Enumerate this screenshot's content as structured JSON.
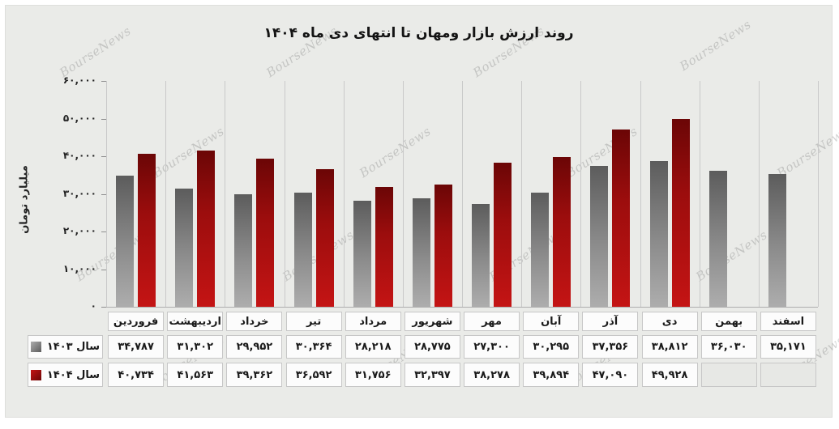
{
  "watermark": {
    "text": "BourseNews"
  },
  "title": "روند ارزش بازار ومهان تا انتهای دی ماه ۱۴۰۴",
  "y_axis": {
    "title": "میلیارد تومان",
    "tick_labels_fa": [
      "۰",
      "۱۰,۰۰۰",
      "۲۰,۰۰۰",
      "۳۰,۰۰۰",
      "۴۰,۰۰۰",
      "۵۰,۰۰۰",
      "۶۰,۰۰۰"
    ]
  },
  "colors": {
    "series_1403": {
      "from": "#5c5c5c",
      "to": "#adadad"
    },
    "series_1404": {
      "from": "#6b0606",
      "to": "#c41414"
    },
    "gridline": "#c9c9c9",
    "card_background": "#eaebe8"
  },
  "chart_data": {
    "type": "bar",
    "title": "روند ارزش بازار ومهان تا انتهای دی ماه ۱۴۰۴",
    "xlabel": "",
    "ylabel": "میلیارد تومان",
    "ylim": [
      0,
      60000
    ],
    "y_ticks": [
      0,
      10000,
      20000,
      30000,
      40000,
      50000,
      60000
    ],
    "grid": "vertical",
    "legend_position": "table-left",
    "categories": [
      "فروردین",
      "اردیبهشت",
      "خرداد",
      "تیر",
      "مرداد",
      "شهریور",
      "مهر",
      "آبان",
      "آذر",
      "دی",
      "بهمن",
      "اسفند"
    ],
    "series": [
      {
        "name": "سال ۱۴۰۳",
        "color_key": "series_1403",
        "values": [
          34787,
          31302,
          29952,
          30364,
          28218,
          28775,
          27300,
          30295,
          37356,
          38812,
          36030,
          35171
        ],
        "values_fa": [
          "۳۴,۷۸۷",
          "۳۱,۳۰۲",
          "۲۹,۹۵۲",
          "۳۰,۳۶۴",
          "۲۸,۲۱۸",
          "۲۸,۷۷۵",
          "۲۷,۳۰۰",
          "۳۰,۲۹۵",
          "۳۷,۳۵۶",
          "۳۸,۸۱۲",
          "۳۶,۰۳۰",
          "۳۵,۱۷۱"
        ]
      },
      {
        "name": "سال ۱۴۰۴",
        "color_key": "series_1404",
        "values": [
          40734,
          41563,
          39362,
          36592,
          31756,
          32397,
          38278,
          39894,
          47090,
          49928,
          null,
          null
        ],
        "values_fa": [
          "۴۰,۷۳۴",
          "۴۱,۵۶۳",
          "۳۹,۳۶۲",
          "۳۶,۵۹۲",
          "۳۱,۷۵۶",
          "۳۲,۳۹۷",
          "۳۸,۲۷۸",
          "۳۹,۸۹۴",
          "۴۷,۰۹۰",
          "۴۹,۹۲۸",
          "",
          ""
        ]
      }
    ]
  }
}
